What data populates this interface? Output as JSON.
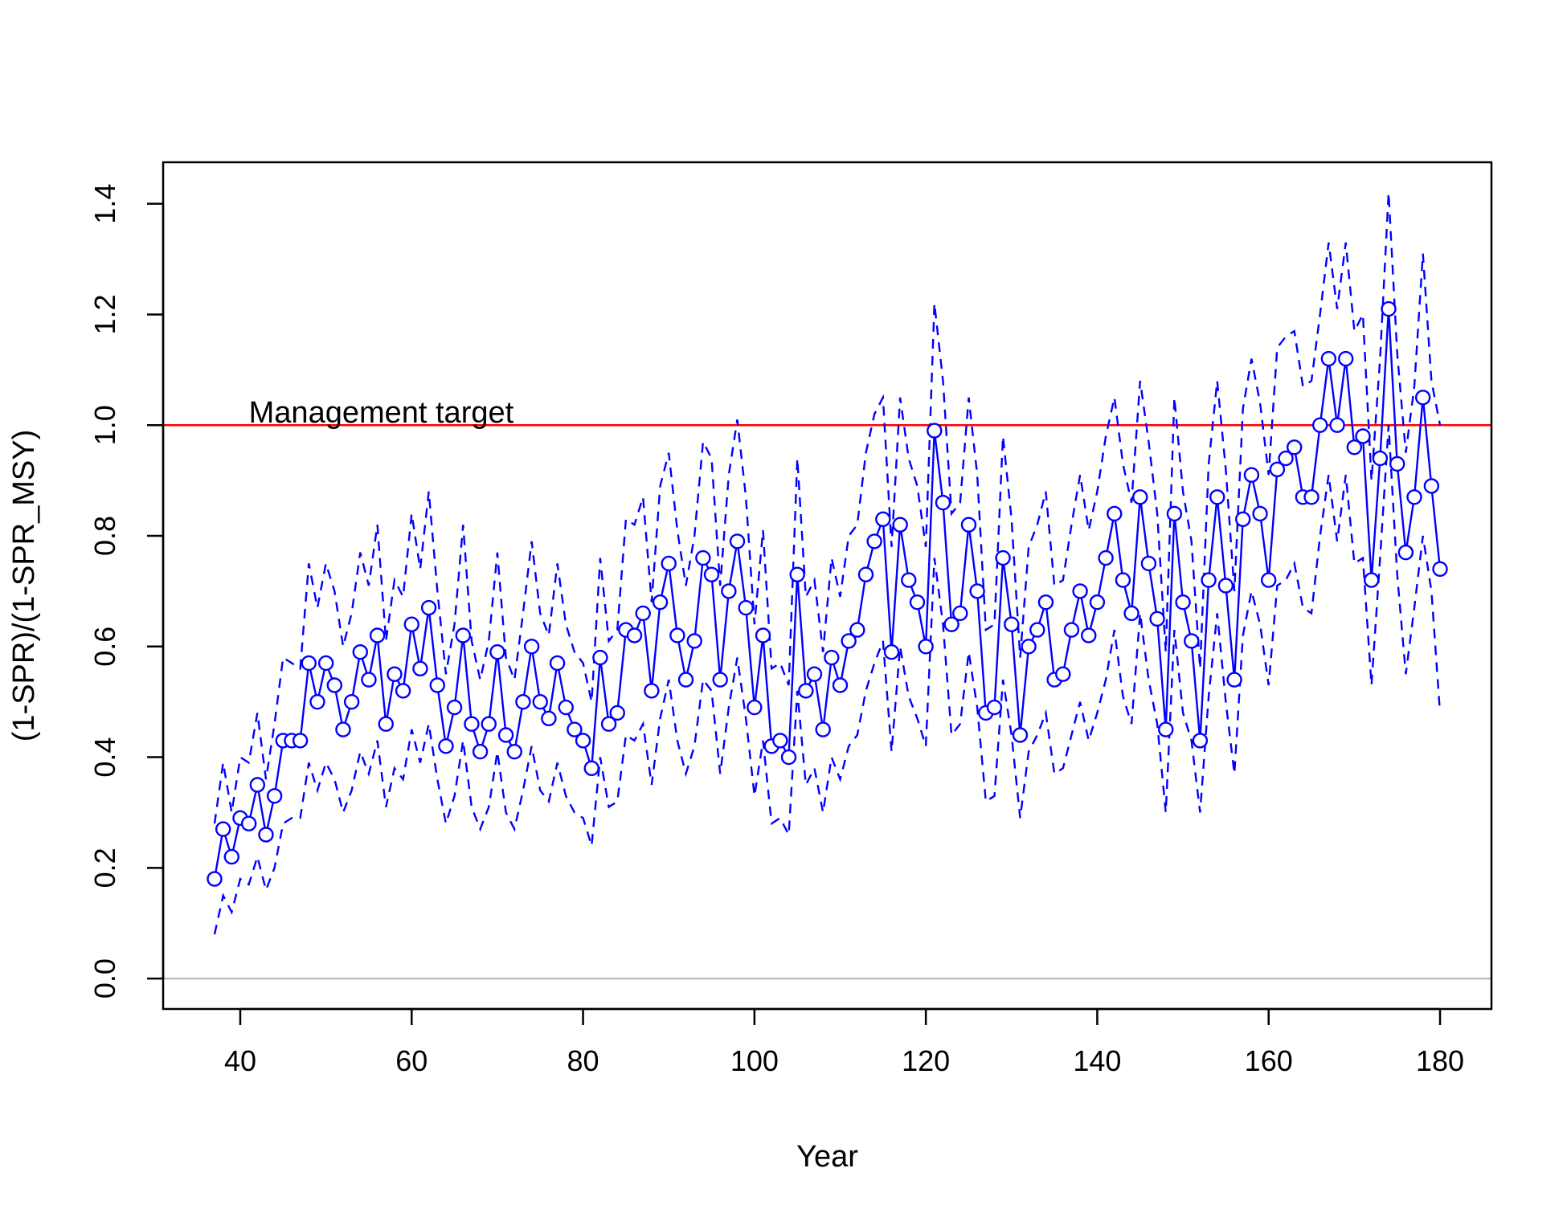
{
  "chart_data": {
    "type": "line",
    "title": "",
    "xlabel": "Year",
    "ylabel": "(1-SPR)/(1-SPR_MSY)",
    "xlim": [
      31,
      186
    ],
    "ylim": [
      -0.055,
      1.475
    ],
    "xticks": [
      40,
      60,
      80,
      100,
      120,
      140,
      160,
      180
    ],
    "yticks": [
      0.0,
      0.2,
      0.4,
      0.6,
      0.8,
      1.0,
      1.2,
      1.4
    ],
    "xtick_labels": [
      "40",
      "60",
      "80",
      "100",
      "120",
      "140",
      "160",
      "180"
    ],
    "ytick_labels": [
      "0.0",
      "0.2",
      "0.4",
      "0.6",
      "0.8",
      "1.0",
      "1.2",
      "1.4"
    ],
    "grid": false,
    "legend": "none",
    "x": [
      37,
      38,
      39,
      40,
      41,
      42,
      43,
      44,
      45,
      46,
      47,
      48,
      49,
      50,
      51,
      52,
      53,
      54,
      55,
      56,
      57,
      58,
      59,
      60,
      61,
      62,
      63,
      64,
      65,
      66,
      67,
      68,
      69,
      70,
      71,
      72,
      73,
      74,
      75,
      76,
      77,
      78,
      79,
      80,
      81,
      82,
      83,
      84,
      85,
      86,
      87,
      88,
      89,
      90,
      91,
      92,
      93,
      94,
      95,
      96,
      97,
      98,
      99,
      100,
      101,
      102,
      103,
      104,
      105,
      106,
      107,
      108,
      109,
      110,
      111,
      112,
      113,
      114,
      115,
      116,
      117,
      118,
      119,
      120,
      121,
      122,
      123,
      124,
      125,
      126,
      127,
      128,
      129,
      130,
      131,
      132,
      133,
      134,
      135,
      136,
      137,
      138,
      139,
      140,
      141,
      142,
      143,
      144,
      145,
      146,
      147,
      148,
      149,
      150,
      151,
      152,
      153,
      154,
      155,
      156,
      157,
      158,
      159,
      160,
      161,
      162,
      163,
      164,
      165,
      166,
      167,
      168,
      169,
      170,
      171,
      172,
      173,
      174,
      175,
      176,
      177,
      178,
      179,
      180
    ],
    "series": [
      {
        "role": "estimate",
        "color": "#0000ff",
        "line": "solid",
        "marker": "open-circle",
        "values": [
          0.18,
          0.27,
          0.22,
          0.29,
          0.28,
          0.35,
          0.26,
          0.33,
          0.43,
          0.43,
          0.43,
          0.57,
          0.5,
          0.57,
          0.53,
          0.45,
          0.5,
          0.59,
          0.54,
          0.62,
          0.46,
          0.55,
          0.52,
          0.64,
          0.56,
          0.67,
          0.53,
          0.42,
          0.49,
          0.62,
          0.46,
          0.41,
          0.46,
          0.59,
          0.44,
          0.41,
          0.5,
          0.6,
          0.5,
          0.47,
          0.57,
          0.49,
          0.45,
          0.43,
          0.38,
          0.58,
          0.46,
          0.48,
          0.63,
          0.62,
          0.66,
          0.52,
          0.68,
          0.75,
          0.62,
          0.54,
          0.61,
          0.76,
          0.73,
          0.54,
          0.7,
          0.79,
          0.67,
          0.49,
          0.62,
          0.42,
          0.43,
          0.4,
          0.73,
          0.52,
          0.55,
          0.45,
          0.58,
          0.53,
          0.61,
          0.63,
          0.73,
          0.79,
          0.83,
          0.59,
          0.82,
          0.72,
          0.68,
          0.6,
          0.99,
          0.86,
          0.64,
          0.66,
          0.82,
          0.7,
          0.48,
          0.49,
          0.76,
          0.64,
          0.44,
          0.6,
          0.63,
          0.68,
          0.54,
          0.55,
          0.63,
          0.7,
          0.62,
          0.68,
          0.76,
          0.84,
          0.72,
          0.66,
          0.87,
          0.75,
          0.65,
          0.45,
          0.84,
          0.68,
          0.61,
          0.43,
          0.72,
          0.87,
          0.71,
          0.54,
          0.83,
          0.91,
          0.84,
          0.72,
          0.92,
          0.94,
          0.96,
          0.87,
          0.87,
          1.0,
          1.12,
          1.0,
          1.12,
          0.96,
          0.98,
          0.72,
          0.94,
          1.21,
          0.93,
          0.77,
          0.87,
          1.05,
          0.89,
          0.74
        ]
      },
      {
        "role": "upper",
        "color": "#0000ff",
        "line": "dashed",
        "values": [
          0.28,
          0.39,
          0.3,
          0.4,
          0.39,
          0.48,
          0.36,
          0.46,
          0.58,
          0.57,
          0.56,
          0.75,
          0.67,
          0.75,
          0.7,
          0.6,
          0.66,
          0.77,
          0.71,
          0.82,
          0.61,
          0.72,
          0.69,
          0.84,
          0.74,
          0.88,
          0.7,
          0.55,
          0.64,
          0.82,
          0.61,
          0.54,
          0.61,
          0.77,
          0.58,
          0.54,
          0.66,
          0.79,
          0.66,
          0.62,
          0.75,
          0.64,
          0.59,
          0.57,
          0.5,
          0.76,
          0.61,
          0.63,
          0.83,
          0.82,
          0.87,
          0.68,
          0.89,
          0.95,
          0.81,
          0.71,
          0.8,
          0.97,
          0.94,
          0.71,
          0.91,
          1.01,
          0.87,
          0.64,
          0.81,
          0.56,
          0.57,
          0.53,
          0.94,
          0.69,
          0.72,
          0.59,
          0.76,
          0.69,
          0.8,
          0.82,
          0.95,
          1.02,
          1.05,
          0.78,
          1.05,
          0.94,
          0.89,
          0.78,
          1.22,
          1.08,
          0.84,
          0.86,
          1.05,
          0.91,
          0.63,
          0.64,
          0.98,
          0.83,
          0.58,
          0.78,
          0.82,
          0.88,
          0.71,
          0.72,
          0.82,
          0.91,
          0.81,
          0.88,
          0.98,
          1.05,
          0.93,
          0.86,
          1.08,
          0.97,
          0.84,
          0.59,
          1.05,
          0.88,
          0.79,
          0.56,
          0.93,
          1.08,
          0.92,
          0.7,
          1.03,
          1.12,
          1.04,
          0.91,
          1.14,
          1.16,
          1.17,
          1.07,
          1.08,
          1.2,
          1.33,
          1.21,
          1.33,
          1.17,
          1.2,
          0.9,
          1.12,
          1.42,
          1.13,
          0.95,
          1.07,
          1.31,
          1.08,
          1.0
        ]
      },
      {
        "role": "lower",
        "color": "#0000ff",
        "line": "dashed",
        "values": [
          0.08,
          0.15,
          0.12,
          0.18,
          0.17,
          0.22,
          0.16,
          0.2,
          0.28,
          0.29,
          0.29,
          0.39,
          0.34,
          0.39,
          0.36,
          0.3,
          0.34,
          0.41,
          0.37,
          0.43,
          0.31,
          0.38,
          0.36,
          0.45,
          0.39,
          0.46,
          0.36,
          0.28,
          0.33,
          0.43,
          0.31,
          0.27,
          0.31,
          0.41,
          0.3,
          0.27,
          0.34,
          0.42,
          0.34,
          0.32,
          0.39,
          0.33,
          0.3,
          0.29,
          0.24,
          0.4,
          0.31,
          0.32,
          0.44,
          0.43,
          0.46,
          0.35,
          0.47,
          0.54,
          0.43,
          0.37,
          0.42,
          0.54,
          0.52,
          0.37,
          0.49,
          0.58,
          0.47,
          0.33,
          0.43,
          0.28,
          0.29,
          0.26,
          0.52,
          0.35,
          0.38,
          0.3,
          0.4,
          0.36,
          0.42,
          0.44,
          0.52,
          0.57,
          0.61,
          0.41,
          0.6,
          0.51,
          0.47,
          0.42,
          0.76,
          0.64,
          0.44,
          0.46,
          0.59,
          0.49,
          0.32,
          0.33,
          0.54,
          0.44,
          0.29,
          0.41,
          0.44,
          0.48,
          0.37,
          0.38,
          0.44,
          0.5,
          0.43,
          0.48,
          0.54,
          0.63,
          0.51,
          0.46,
          0.66,
          0.54,
          0.46,
          0.3,
          0.63,
          0.48,
          0.43,
          0.3,
          0.51,
          0.66,
          0.5,
          0.37,
          0.62,
          0.7,
          0.64,
          0.53,
          0.71,
          0.72,
          0.75,
          0.67,
          0.66,
          0.8,
          0.91,
          0.79,
          0.91,
          0.75,
          0.76,
          0.53,
          0.76,
          1.0,
          0.73,
          0.55,
          0.67,
          0.8,
          0.7,
          0.48
        ]
      }
    ],
    "reference_lines": [
      {
        "y": 1.0,
        "color": "#ff0000",
        "label": "Management target"
      },
      {
        "y": 0.0,
        "color": "#bebebe",
        "label": ""
      }
    ]
  }
}
